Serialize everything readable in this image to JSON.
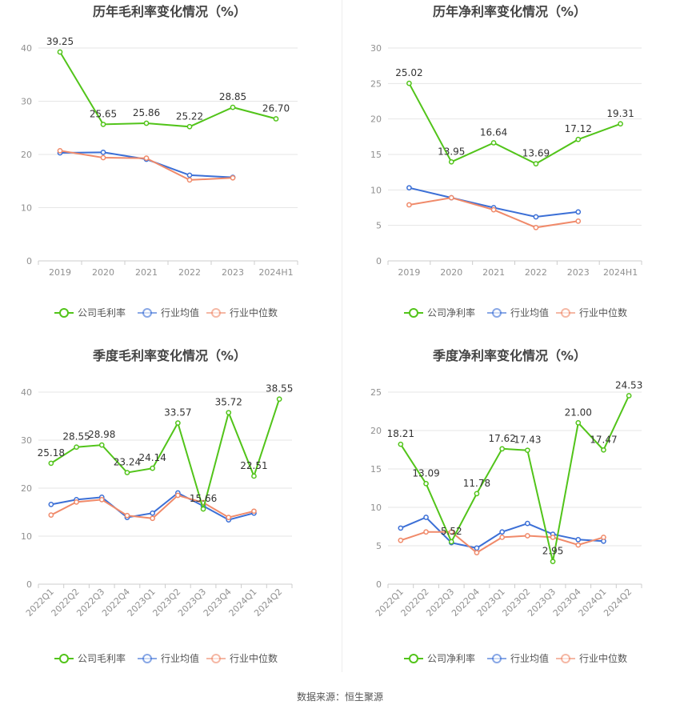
{
  "colors": {
    "company": "#52c41a",
    "industry_avg": "#3b6fd6",
    "industry_median": "#f08a6a",
    "grid": "#e6e6e6",
    "axis_text": "#909090",
    "title": "#444444"
  },
  "source_text": "数据来源：恒生聚源",
  "chart_data": [
    {
      "type": "line",
      "title": "历年毛利率变化情况（%）",
      "categories": [
        "2019",
        "2020",
        "2021",
        "2022",
        "2023",
        "2024H1"
      ],
      "ylim": [
        0,
        40
      ],
      "yticks": [
        "0",
        "10",
        "20",
        "30",
        "40"
      ],
      "legend_position": "bottom",
      "series": [
        {
          "name": "公司毛利率",
          "values": [
            39.25,
            25.65,
            25.86,
            25.22,
            28.85,
            26.7
          ],
          "labels": [
            "39.25",
            "25.65",
            "25.86",
            "25.22",
            "28.85",
            "26.70"
          ]
        },
        {
          "name": "行业均值",
          "values": [
            20.3,
            20.4,
            19.1,
            16.1,
            15.7,
            null
          ]
        },
        {
          "name": "行业中位数",
          "values": [
            20.7,
            19.4,
            19.3,
            15.2,
            15.6,
            null
          ]
        }
      ]
    },
    {
      "type": "line",
      "title": "历年净利率变化情况（%）",
      "categories": [
        "2019",
        "2020",
        "2021",
        "2022",
        "2023",
        "2024H1"
      ],
      "ylim": [
        0,
        30
      ],
      "yticks": [
        "0",
        "5",
        "10",
        "15",
        "20",
        "25",
        "30"
      ],
      "legend_position": "bottom",
      "series": [
        {
          "name": "公司净利率",
          "values": [
            25.02,
            13.95,
            16.64,
            13.69,
            17.12,
            19.31
          ],
          "labels": [
            "25.02",
            "13.95",
            "16.64",
            "13.69",
            "17.12",
            "19.31"
          ]
        },
        {
          "name": "行业均值",
          "values": [
            10.3,
            8.9,
            7.5,
            6.2,
            6.9,
            null
          ]
        },
        {
          "name": "行业中位数",
          "values": [
            7.9,
            8.9,
            7.2,
            4.7,
            5.6,
            null
          ]
        }
      ]
    },
    {
      "type": "line",
      "title": "季度毛利率变化情况（%）",
      "categories": [
        "2022Q1",
        "2022Q2",
        "2022Q3",
        "2022Q4",
        "2023Q1",
        "2023Q2",
        "2023Q3",
        "2023Q4",
        "2024Q1",
        "2024Q2"
      ],
      "ylim": [
        0,
        40
      ],
      "yticks": [
        "0",
        "10",
        "20",
        "30",
        "40"
      ],
      "legend_position": "bottom",
      "series": [
        {
          "name": "公司毛利率",
          "values": [
            25.18,
            28.55,
            28.98,
            23.24,
            24.14,
            33.57,
            15.66,
            35.72,
            22.51,
            38.55
          ],
          "labels": [
            "25.18",
            "28.55",
            "28.98",
            "23.24",
            "24.14",
            "33.57",
            "15.66",
            "35.72",
            "22.51",
            "38.55"
          ]
        },
        {
          "name": "行业均值",
          "values": [
            16.6,
            17.6,
            18.1,
            13.9,
            14.8,
            19.0,
            16.3,
            13.4,
            14.8,
            null
          ]
        },
        {
          "name": "行业中位数",
          "values": [
            14.4,
            17.1,
            17.6,
            14.3,
            13.7,
            18.5,
            17.0,
            13.9,
            15.2,
            null
          ]
        }
      ]
    },
    {
      "type": "line",
      "title": "季度净利率变化情况（%）",
      "categories": [
        "2022Q1",
        "2022Q2",
        "2022Q3",
        "2022Q4",
        "2023Q1",
        "2023Q2",
        "2023Q3",
        "2023Q4",
        "2024Q1",
        "2024Q2"
      ],
      "ylim": [
        0,
        25
      ],
      "yticks": [
        "0",
        "5",
        "10",
        "15",
        "20",
        "25"
      ],
      "legend_position": "bottom",
      "series": [
        {
          "name": "公司净利率",
          "values": [
            18.21,
            13.09,
            5.52,
            11.78,
            17.62,
            17.43,
            2.95,
            21.0,
            17.47,
            24.53
          ],
          "labels": [
            "18.21",
            "13.09",
            "5.52",
            "11.78",
            "17.62",
            "17.43",
            "2.95",
            "21.00",
            "17.47",
            "24.53"
          ]
        },
        {
          "name": "行业均值",
          "values": [
            7.3,
            8.7,
            5.4,
            4.7,
            6.8,
            7.9,
            6.5,
            5.8,
            5.6,
            null
          ]
        },
        {
          "name": "行业中位数",
          "values": [
            5.7,
            6.8,
            6.8,
            4.1,
            6.1,
            6.3,
            6.1,
            5.1,
            6.1,
            null
          ]
        }
      ]
    }
  ]
}
